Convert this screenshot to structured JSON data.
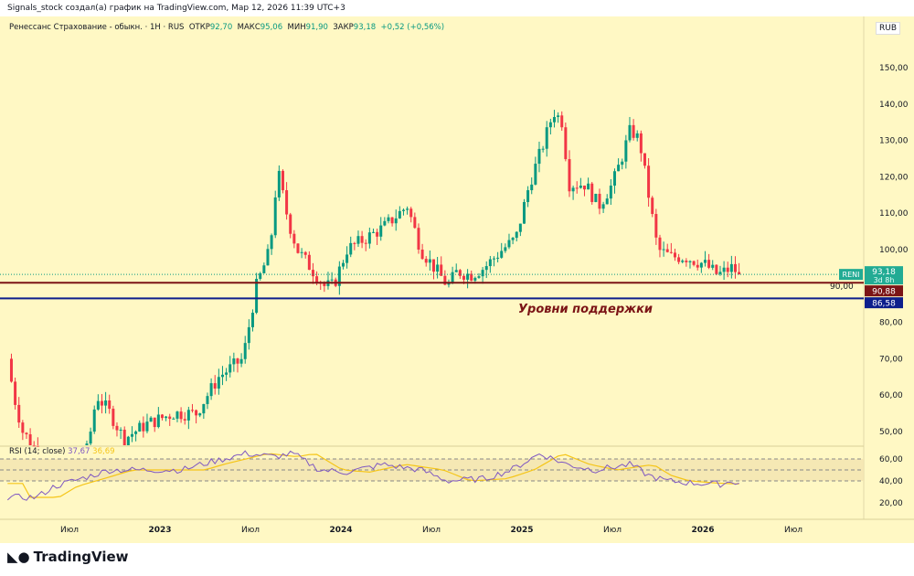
{
  "header": "Signals_stock создал(а) график на TradingView.com, Мар 12, 2026 11:39 UTC+3",
  "legend": {
    "title": "Ренессанс Страхование - обыкн. · 1H · RUS",
    "open_label": "ОТКР",
    "open": "92,70",
    "high_label": "МАКС",
    "high": "95,06",
    "low_label": "МИН",
    "low": "91,90",
    "close_label": "ЗАКР",
    "close": "93,18",
    "change": "+0,52 (+0,56%)"
  },
  "currency": "RUB",
  "ticker": "RENI",
  "price_badge": {
    "price": "93,18",
    "countdown": "3d 8h"
  },
  "levels": [
    {
      "label": "90,88",
      "value": 90.88,
      "color": "#7b1416"
    },
    {
      "label": "86,58",
      "value": 86.58,
      "color": "#0d1f8c"
    }
  ],
  "annotation": "Уровни поддержки",
  "rsi_legend": {
    "label": "RSI (14; close)",
    "value": "37,67",
    "ma_value": "36,69"
  },
  "logo": "TradingView",
  "chart_data": {
    "type": "candlestick",
    "time_unit": "months since Jan 2023",
    "price_axis": {
      "ticks": [
        50,
        60,
        70,
        80,
        90,
        100,
        110,
        120,
        130,
        140,
        150
      ],
      "labels": [
        "50,00",
        "60,00",
        "70,00",
        "80,00",
        "90,00",
        "100,00",
        "110,00",
        "120,00",
        "130,00",
        "140,00",
        "150,00"
      ]
    },
    "rsi_axis": {
      "ticks": [
        20,
        40,
        60
      ],
      "labels": [
        "20,00",
        "40,00",
        "60,00"
      ],
      "bands": [
        30,
        50,
        70
      ]
    },
    "time_axis": [
      {
        "t": -6,
        "label": "Июл"
      },
      {
        "t": 0,
        "label": "2023"
      },
      {
        "t": 6,
        "label": "Июл"
      },
      {
        "t": 12,
        "label": "2024"
      },
      {
        "t": 18,
        "label": "Июл"
      },
      {
        "t": 24,
        "label": "2025"
      },
      {
        "t": 30,
        "label": "Июл"
      },
      {
        "t": 36,
        "label": "2026"
      },
      {
        "t": 42,
        "label": "Июл"
      }
    ],
    "price_path": [
      [
        -10.1,
        70
      ],
      [
        -9.7,
        60
      ],
      [
        -9.1,
        50
      ],
      [
        -8.2,
        45
      ],
      [
        -7,
        40
      ],
      [
        -4.8,
        45
      ],
      [
        -4.2,
        60
      ],
      [
        -3.3,
        55
      ],
      [
        -2.4,
        48
      ],
      [
        -0.9,
        52
      ],
      [
        0.9,
        55
      ],
      [
        2.4,
        55
      ],
      [
        3.9,
        65
      ],
      [
        5.5,
        70
      ],
      [
        6.4,
        90
      ],
      [
        7.3,
        100
      ],
      [
        7.8,
        122
      ],
      [
        8.5,
        108
      ],
      [
        9.1,
        100
      ],
      [
        10,
        95
      ],
      [
        10.9,
        90
      ],
      [
        11.5,
        90
      ],
      [
        12.4,
        100
      ],
      [
        13.6,
        103
      ],
      [
        14.8,
        106
      ],
      [
        16.4,
        112
      ],
      [
        17.3,
        100
      ],
      [
        18.2,
        95
      ],
      [
        19.1,
        90
      ],
      [
        19.7,
        94
      ],
      [
        20.6,
        93
      ],
      [
        21.5,
        95
      ],
      [
        22.7,
        100
      ],
      [
        23.6,
        103
      ],
      [
        24.5,
        118
      ],
      [
        25.5,
        130
      ],
      [
        26.1,
        138
      ],
      [
        26.7,
        135
      ],
      [
        27.1,
        118
      ],
      [
        28.2,
        118
      ],
      [
        29.1,
        112
      ],
      [
        30,
        118
      ],
      [
        30.6,
        125
      ],
      [
        31.2,
        133
      ],
      [
        31.8,
        130
      ],
      [
        32.4,
        115
      ],
      [
        33,
        100
      ],
      [
        33.9,
        98
      ],
      [
        34.8,
        98
      ],
      [
        36.1,
        96
      ],
      [
        37,
        93
      ],
      [
        37.9,
        95
      ],
      [
        38.5,
        93.18
      ]
    ],
    "rsi_path": [
      [
        -10.1,
        25
      ],
      [
        -8.2,
        25
      ],
      [
        -7,
        35
      ],
      [
        -4.5,
        45
      ],
      [
        -3.3,
        50
      ],
      [
        1.5,
        50
      ],
      [
        2.7,
        55
      ],
      [
        5.7,
        65
      ],
      [
        7.6,
        62
      ],
      [
        8.8,
        65
      ],
      [
        10.6,
        50
      ],
      [
        12.4,
        48
      ],
      [
        14.8,
        55
      ],
      [
        17.3,
        50
      ],
      [
        19.1,
        40
      ],
      [
        21.5,
        42
      ],
      [
        23.3,
        50
      ],
      [
        25.2,
        65
      ],
      [
        27,
        55
      ],
      [
        28.8,
        50
      ],
      [
        31.2,
        55
      ],
      [
        32.4,
        45
      ],
      [
        33.6,
        40
      ],
      [
        35.5,
        38
      ],
      [
        37.3,
        37
      ],
      [
        37.9,
        40
      ],
      [
        38.5,
        37.67
      ]
    ]
  }
}
